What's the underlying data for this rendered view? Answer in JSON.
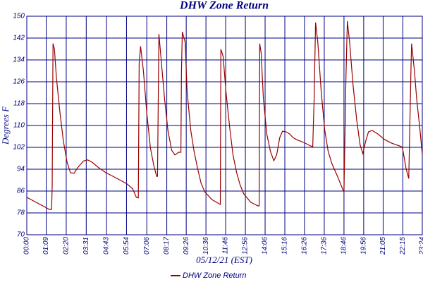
{
  "chart_data": {
    "type": "line",
    "title": "DHW Zone Return",
    "xlabel": "05/12/21 (EST)",
    "ylabel": "Degrees F",
    "x": [
      0,
      80,
      88,
      90,
      93,
      98,
      105,
      118,
      130,
      143,
      155,
      168,
      180,
      201,
      216,
      231,
      256,
      281,
      306,
      331,
      356,
      376,
      389,
      396,
      399,
      404,
      414,
      426,
      439,
      451,
      461,
      464,
      469,
      476,
      489,
      501,
      514,
      526,
      539,
      547,
      549,
      552,
      562,
      569,
      582,
      594,
      607,
      619,
      632,
      657,
      687,
      689,
      697,
      707,
      720,
      732,
      745,
      757,
      770,
      795,
      820,
      825,
      827,
      832,
      840,
      852,
      865,
      877,
      887,
      898,
      908,
      920,
      933,
      945,
      958,
      983,
      1008,
      1015,
      1020,
      1025,
      1033,
      1045,
      1058,
      1070,
      1083,
      1103,
      1121,
      1126,
      1133,
      1138,
      1146,
      1158,
      1171,
      1183,
      1193,
      1203,
      1213,
      1226,
      1246,
      1271,
      1296,
      1329,
      1334,
      1346,
      1356,
      1364,
      1366,
      1376,
      1384,
      1396,
      1404
    ],
    "series": [
      {
        "name": "DHW Zone Return",
        "color": "#990000",
        "values": [
          83.7,
          79.3,
          79.3,
          87.5,
          140,
          138,
          127.5,
          114.6,
          104.3,
          96.6,
          92.7,
          92.5,
          94.5,
          97,
          97.4,
          96.6,
          94.5,
          92.7,
          91.4,
          90,
          88.6,
          86.8,
          83.7,
          83.5,
          132.7,
          139,
          130,
          114.6,
          101.7,
          95.3,
          91.4,
          91.4,
          143.5,
          135.3,
          119.8,
          108.2,
          101,
          99.2,
          100.2,
          100.2,
          130,
          144.3,
          140.5,
          122.4,
          108.2,
          100.5,
          94,
          88.8,
          85.7,
          82.9,
          81.1,
          137.9,
          135.3,
          122.4,
          109.5,
          99.2,
          92.7,
          88.3,
          85,
          81.9,
          80.6,
          80.6,
          140,
          136.6,
          119.8,
          106.9,
          100.5,
          97.1,
          99.2,
          105.6,
          107.9,
          107.7,
          106.9,
          105.6,
          104.8,
          103.8,
          102.5,
          102.3,
          119.8,
          147.7,
          140.5,
          122.4,
          108.2,
          100.5,
          96.1,
          91.4,
          86.8,
          85.7,
          127.5,
          148.2,
          140.5,
          125,
          112.1,
          103,
          99.7,
          104.3,
          107.7,
          108.2,
          106.9,
          104.8,
          103.5,
          102.3,
          101.7,
          94.5,
          90.6,
          131.4,
          140,
          130.1,
          119.8,
          108.2,
          99.2
        ]
      }
    ],
    "xlim": [
      0,
      1404
    ],
    "xticks": [
      {
        "value": 0,
        "label": "00:00"
      },
      {
        "value": 69,
        "label": "01:09"
      },
      {
        "value": 140,
        "label": "02:20"
      },
      {
        "value": 211,
        "label": "03:31"
      },
      {
        "value": 283,
        "label": "04:43"
      },
      {
        "value": 354,
        "label": "05:54"
      },
      {
        "value": 426,
        "label": "07:06"
      },
      {
        "value": 497,
        "label": "08:17"
      },
      {
        "value": 566,
        "label": "09:26"
      },
      {
        "value": 636,
        "label": "10:36"
      },
      {
        "value": 706,
        "label": "11:46"
      },
      {
        "value": 776,
        "label": "12:56"
      },
      {
        "value": 846,
        "label": "14:06"
      },
      {
        "value": 916,
        "label": "15:16"
      },
      {
        "value": 986,
        "label": "16:26"
      },
      {
        "value": 1056,
        "label": "17:36"
      },
      {
        "value": 1126,
        "label": "18:46"
      },
      {
        "value": 1196,
        "label": "19:56"
      },
      {
        "value": 1265,
        "label": "21:05"
      },
      {
        "value": 1335,
        "label": "22:15"
      },
      {
        "value": 1404,
        "label": "23:24"
      }
    ],
    "ylim": [
      70,
      150
    ],
    "yticks": [
      70,
      78,
      86,
      94,
      102,
      110,
      118,
      126,
      134,
      142,
      150
    ],
    "grid": true,
    "legend": "bottom"
  }
}
